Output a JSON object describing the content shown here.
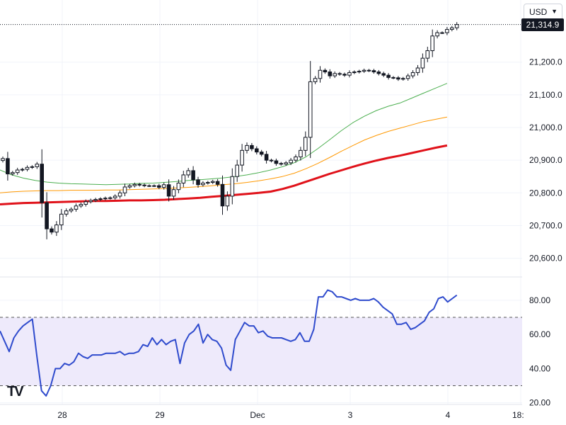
{
  "currency": {
    "label": "USD",
    "icon": "chevron-down-icon"
  },
  "last_price": "21,314.9",
  "logo_text": "TV",
  "colors": {
    "candle": "#131722",
    "ma_fast": "#4caf50",
    "ma_mid": "#ff9800",
    "ma_slow": "#e0121a",
    "rsi_line": "#2f4bcd",
    "rsi_band": "#eeeafb",
    "grid": "#f0f3fa"
  },
  "chart_data": [
    {
      "type": "candlestick",
      "title": "",
      "xlabel": "",
      "ylabel": "",
      "x_tick_labels": [
        "28",
        "29",
        "Dec",
        "3",
        "4",
        "18:"
      ],
      "y_tick_labels": [
        "21,200.0",
        "21,100.0",
        "21,000.0",
        "20,900.0",
        "20,800.0",
        "20,700.0",
        "20,600.0"
      ],
      "ylim": [
        20545,
        21390
      ],
      "closes": [
        20905,
        20858,
        20862,
        20870,
        20872,
        20878,
        20880,
        20888,
        20770,
        20690,
        20680,
        20702,
        20735,
        20745,
        20750,
        20760,
        20765,
        20773,
        20777,
        20780,
        20782,
        20784,
        20785,
        20790,
        20800,
        20818,
        20822,
        20826,
        20824,
        20822,
        20822,
        20822,
        20817,
        20825,
        20790,
        20810,
        20830,
        20855,
        20868,
        20840,
        20825,
        20830,
        20832,
        20835,
        20826,
        20760,
        20790,
        20850,
        20885,
        20930,
        20945,
        20935,
        20925,
        20918,
        20900,
        20898,
        20890,
        20888,
        20892,
        20900,
        20910,
        20930,
        20970,
        21140,
        21150,
        21175,
        21170,
        21158,
        21165,
        21163,
        21160,
        21168,
        21170,
        21172,
        21175,
        21174,
        21170,
        21165,
        21160,
        21153,
        21152,
        21148,
        21150,
        21158,
        21168,
        21182,
        21212,
        21235,
        21280,
        21290,
        21290,
        21300,
        21305,
        21314.9
      ],
      "series": [
        {
          "name": "",
          "role": "ma_fast",
          "values": [
            20870,
            20855,
            20845,
            20838,
            20833,
            20830,
            20828,
            20827,
            20826,
            20825,
            20826,
            20827,
            20829,
            20830,
            20832,
            20835,
            20838,
            20840,
            20843,
            20846,
            20850,
            20855,
            20862,
            20870,
            20880,
            20892,
            20910,
            20935,
            20962,
            20990,
            21015,
            21035,
            21052,
            21065,
            21075,
            21090,
            21105,
            21120,
            21135
          ]
        },
        {
          "name": "",
          "role": "ma_mid",
          "values": [
            20800,
            20803,
            20805,
            20806,
            20807,
            20807,
            20808,
            20808,
            20808,
            20809,
            20809,
            20810,
            20811,
            20812,
            20813,
            20815,
            20817,
            20819,
            20822,
            20825,
            20828,
            20832,
            20837,
            20843,
            20850,
            20860,
            20874,
            20890,
            20908,
            20927,
            20945,
            20962,
            20976,
            20988,
            20998,
            21008,
            21018,
            21025,
            21032
          ]
        },
        {
          "name": "",
          "role": "ma_slow",
          "values": [
            20765,
            20767,
            20769,
            20770,
            20771,
            20772,
            20773,
            20774,
            20775,
            20775,
            20776,
            20777,
            20777,
            20778,
            20779,
            20781,
            20783,
            20785,
            20788,
            20791,
            20794,
            20797,
            20800,
            20804,
            20812,
            20822,
            20834,
            20846,
            20858,
            20869,
            20880,
            20890,
            20899,
            20907,
            20914,
            20922,
            20930,
            20938,
            20945
          ]
        }
      ]
    },
    {
      "type": "line",
      "title": "",
      "xlabel": "",
      "ylabel": "",
      "y_tick_labels": [
        "80.00",
        "60.00",
        "40.00",
        "20.00"
      ],
      "ylim": [
        19,
        92
      ],
      "bands": [
        30,
        70
      ],
      "series": [
        {
          "name": "",
          "values": [
            62,
            56,
            50,
            58,
            62,
            65,
            67,
            69,
            47,
            27,
            24,
            30,
            40,
            40,
            43,
            42,
            44,
            49,
            47,
            46,
            48,
            48,
            48,
            49,
            49,
            49,
            50,
            48,
            49,
            49,
            50,
            54,
            53,
            58,
            54,
            57,
            54,
            56,
            57,
            43,
            55,
            60,
            62,
            66,
            55,
            60,
            57,
            56,
            52,
            42,
            39,
            57,
            62,
            67,
            65,
            65,
            61,
            62,
            59,
            58,
            58,
            58,
            57,
            56,
            57,
            61,
            56,
            56,
            63,
            82,
            82,
            86,
            85,
            82,
            82,
            81,
            80,
            81,
            80,
            80,
            80,
            81,
            79,
            76,
            74,
            72,
            66,
            66,
            67,
            63,
            64,
            66,
            68,
            73,
            75,
            81,
            82,
            79,
            81,
            83
          ]
        }
      ]
    }
  ]
}
